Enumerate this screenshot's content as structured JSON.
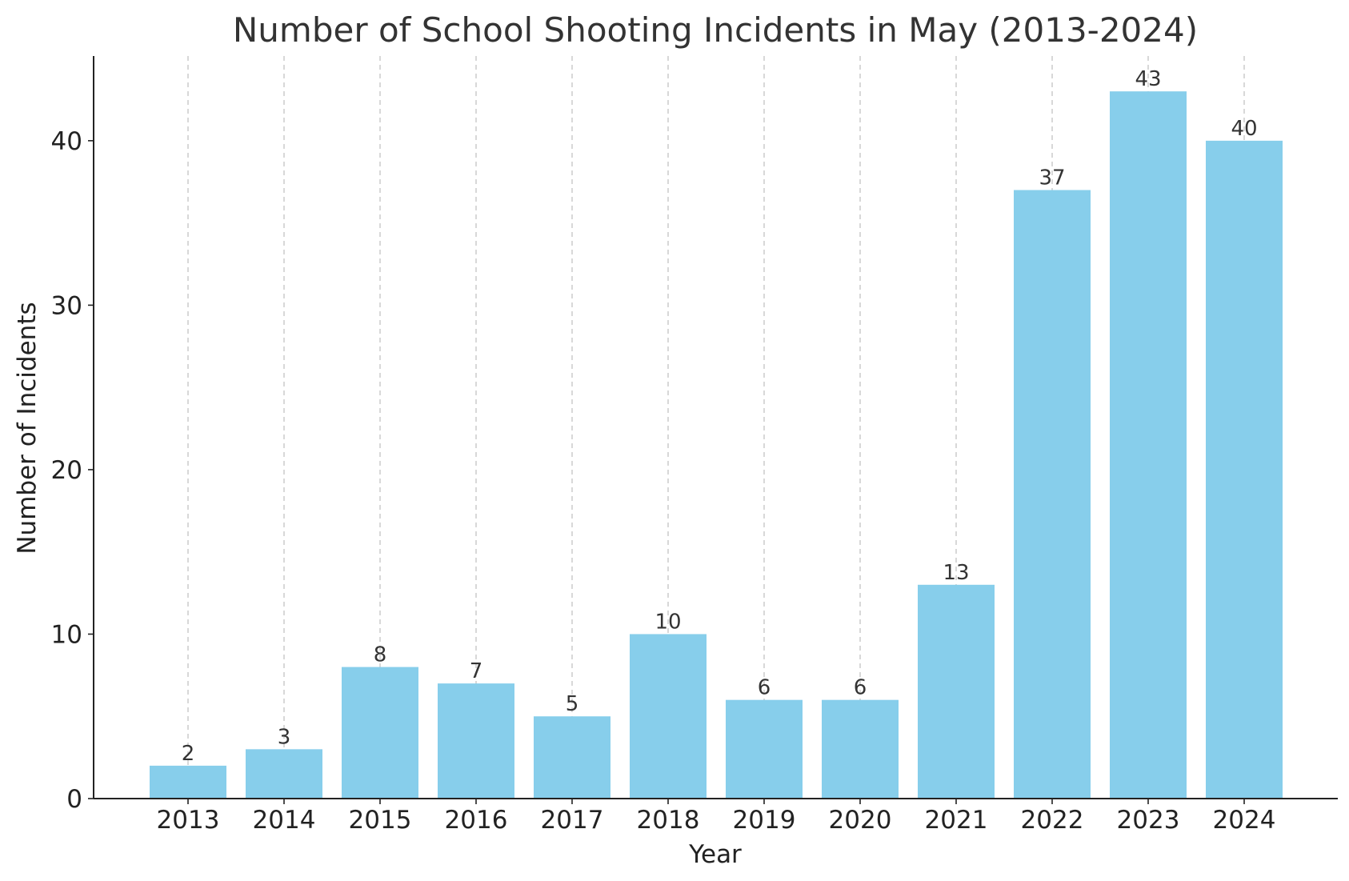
{
  "chart_data": {
    "type": "bar",
    "title": "Number of School Shooting Incidents in May (2013-2024)",
    "xlabel": "Year",
    "ylabel": "Number of Incidents",
    "categories": [
      "2013",
      "2014",
      "2015",
      "2016",
      "2017",
      "2018",
      "2019",
      "2020",
      "2021",
      "2022",
      "2023",
      "2024"
    ],
    "values": [
      2,
      3,
      8,
      7,
      5,
      10,
      6,
      6,
      13,
      37,
      43,
      40
    ],
    "ylim": [
      0,
      45.15
    ],
    "yticks": [
      0,
      10,
      20,
      30,
      40
    ],
    "grid": "vertical dashed",
    "bar_color": "#87CEEB",
    "grid_color": "#c8c8c8",
    "axis_color": "#222222"
  }
}
